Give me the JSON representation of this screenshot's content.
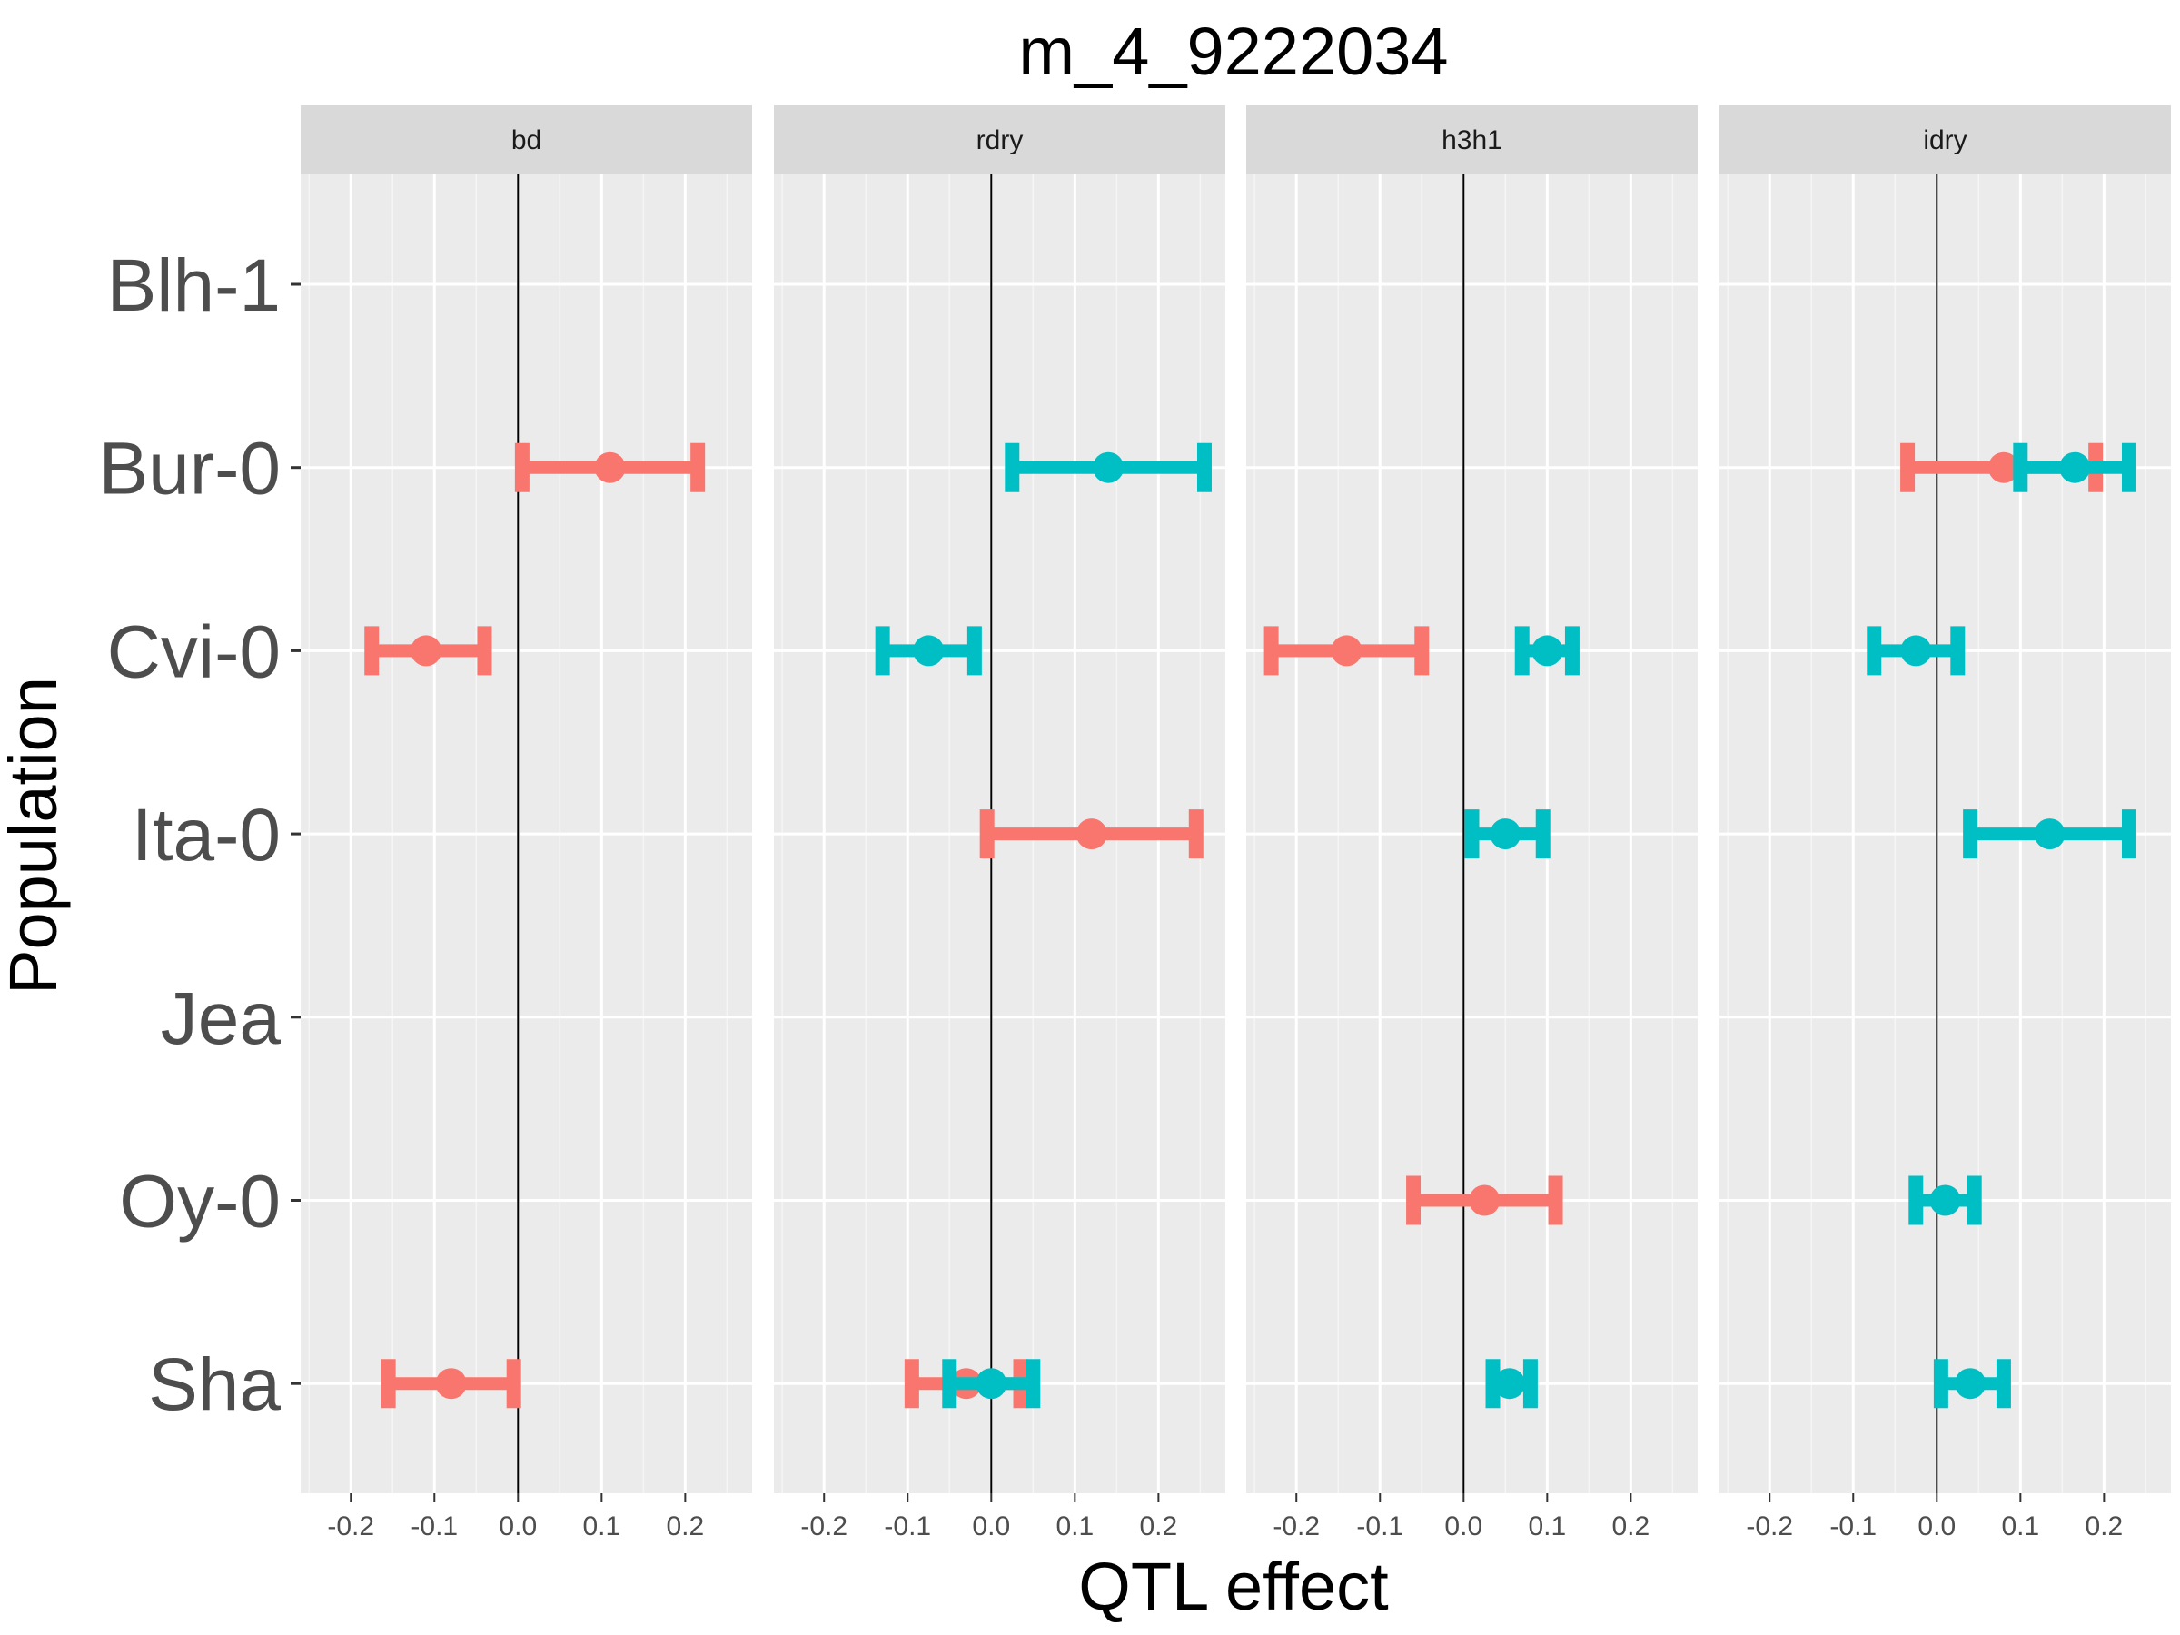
{
  "chart_data": {
    "type": "errorbar",
    "title": "m_4_9222034",
    "xlabel": "QTL effect",
    "ylabel": "Population",
    "xlim": [
      -0.26,
      0.28
    ],
    "x_ticks": [
      "-0.2",
      "-0.1",
      "0.0",
      "0.1",
      "0.2"
    ],
    "x_tick_values": [
      -0.2,
      -0.1,
      0.0,
      0.1,
      0.2
    ],
    "categories": [
      "Blh-1",
      "Bur-0",
      "Cvi-0",
      "Ita-0",
      "Jea",
      "Oy-0",
      "Sha"
    ],
    "reference_line": 0,
    "grid": true,
    "legend": "none",
    "colors": {
      "group_a": "#F8766D",
      "group_b": "#00BFC4"
    },
    "panels": [
      {
        "name": "bd",
        "points": [
          {
            "population": "Bur-0",
            "group": "group_a",
            "x": 0.11,
            "low": 0.005,
            "high": 0.215
          },
          {
            "population": "Cvi-0",
            "group": "group_a",
            "x": -0.11,
            "low": -0.175,
            "high": -0.04
          },
          {
            "population": "Sha",
            "group": "group_a",
            "x": -0.08,
            "low": -0.155,
            "high": -0.005
          }
        ]
      },
      {
        "name": "rdry",
        "points": [
          {
            "population": "Bur-0",
            "group": "group_b",
            "x": 0.14,
            "low": 0.025,
            "high": 0.255
          },
          {
            "population": "Cvi-0",
            "group": "group_b",
            "x": -0.075,
            "low": -0.13,
            "high": -0.02
          },
          {
            "population": "Ita-0",
            "group": "group_a",
            "x": 0.12,
            "low": -0.005,
            "high": 0.245
          },
          {
            "population": "Sha",
            "group": "group_a",
            "x": -0.03,
            "low": -0.095,
            "high": 0.035
          },
          {
            "population": "Sha",
            "group": "group_b",
            "x": 0.0,
            "low": -0.05,
            "high": 0.05
          }
        ]
      },
      {
        "name": "h3h1",
        "points": [
          {
            "population": "Cvi-0",
            "group": "group_a",
            "x": -0.14,
            "low": -0.23,
            "high": -0.05
          },
          {
            "population": "Cvi-0",
            "group": "group_b",
            "x": 0.1,
            "low": 0.07,
            "high": 0.13
          },
          {
            "population": "Ita-0",
            "group": "group_b",
            "x": 0.05,
            "low": 0.01,
            "high": 0.095
          },
          {
            "population": "Oy-0",
            "group": "group_a",
            "x": 0.025,
            "low": -0.06,
            "high": 0.11
          },
          {
            "population": "Sha",
            "group": "group_b",
            "x": 0.055,
            "low": 0.035,
            "high": 0.08
          }
        ]
      },
      {
        "name": "idry",
        "points": [
          {
            "population": "Bur-0",
            "group": "group_a",
            "x": 0.08,
            "low": -0.035,
            "high": 0.19
          },
          {
            "population": "Bur-0",
            "group": "group_b",
            "x": 0.165,
            "low": 0.1,
            "high": 0.23
          },
          {
            "population": "Cvi-0",
            "group": "group_b",
            "x": -0.025,
            "low": -0.075,
            "high": 0.025
          },
          {
            "population": "Ita-0",
            "group": "group_b",
            "x": 0.135,
            "low": 0.04,
            "high": 0.23
          },
          {
            "population": "Oy-0",
            "group": "group_b",
            "x": 0.01,
            "low": -0.025,
            "high": 0.045
          },
          {
            "population": "Sha",
            "group": "group_b",
            "x": 0.04,
            "low": 0.005,
            "high": 0.08
          }
        ]
      }
    ]
  }
}
